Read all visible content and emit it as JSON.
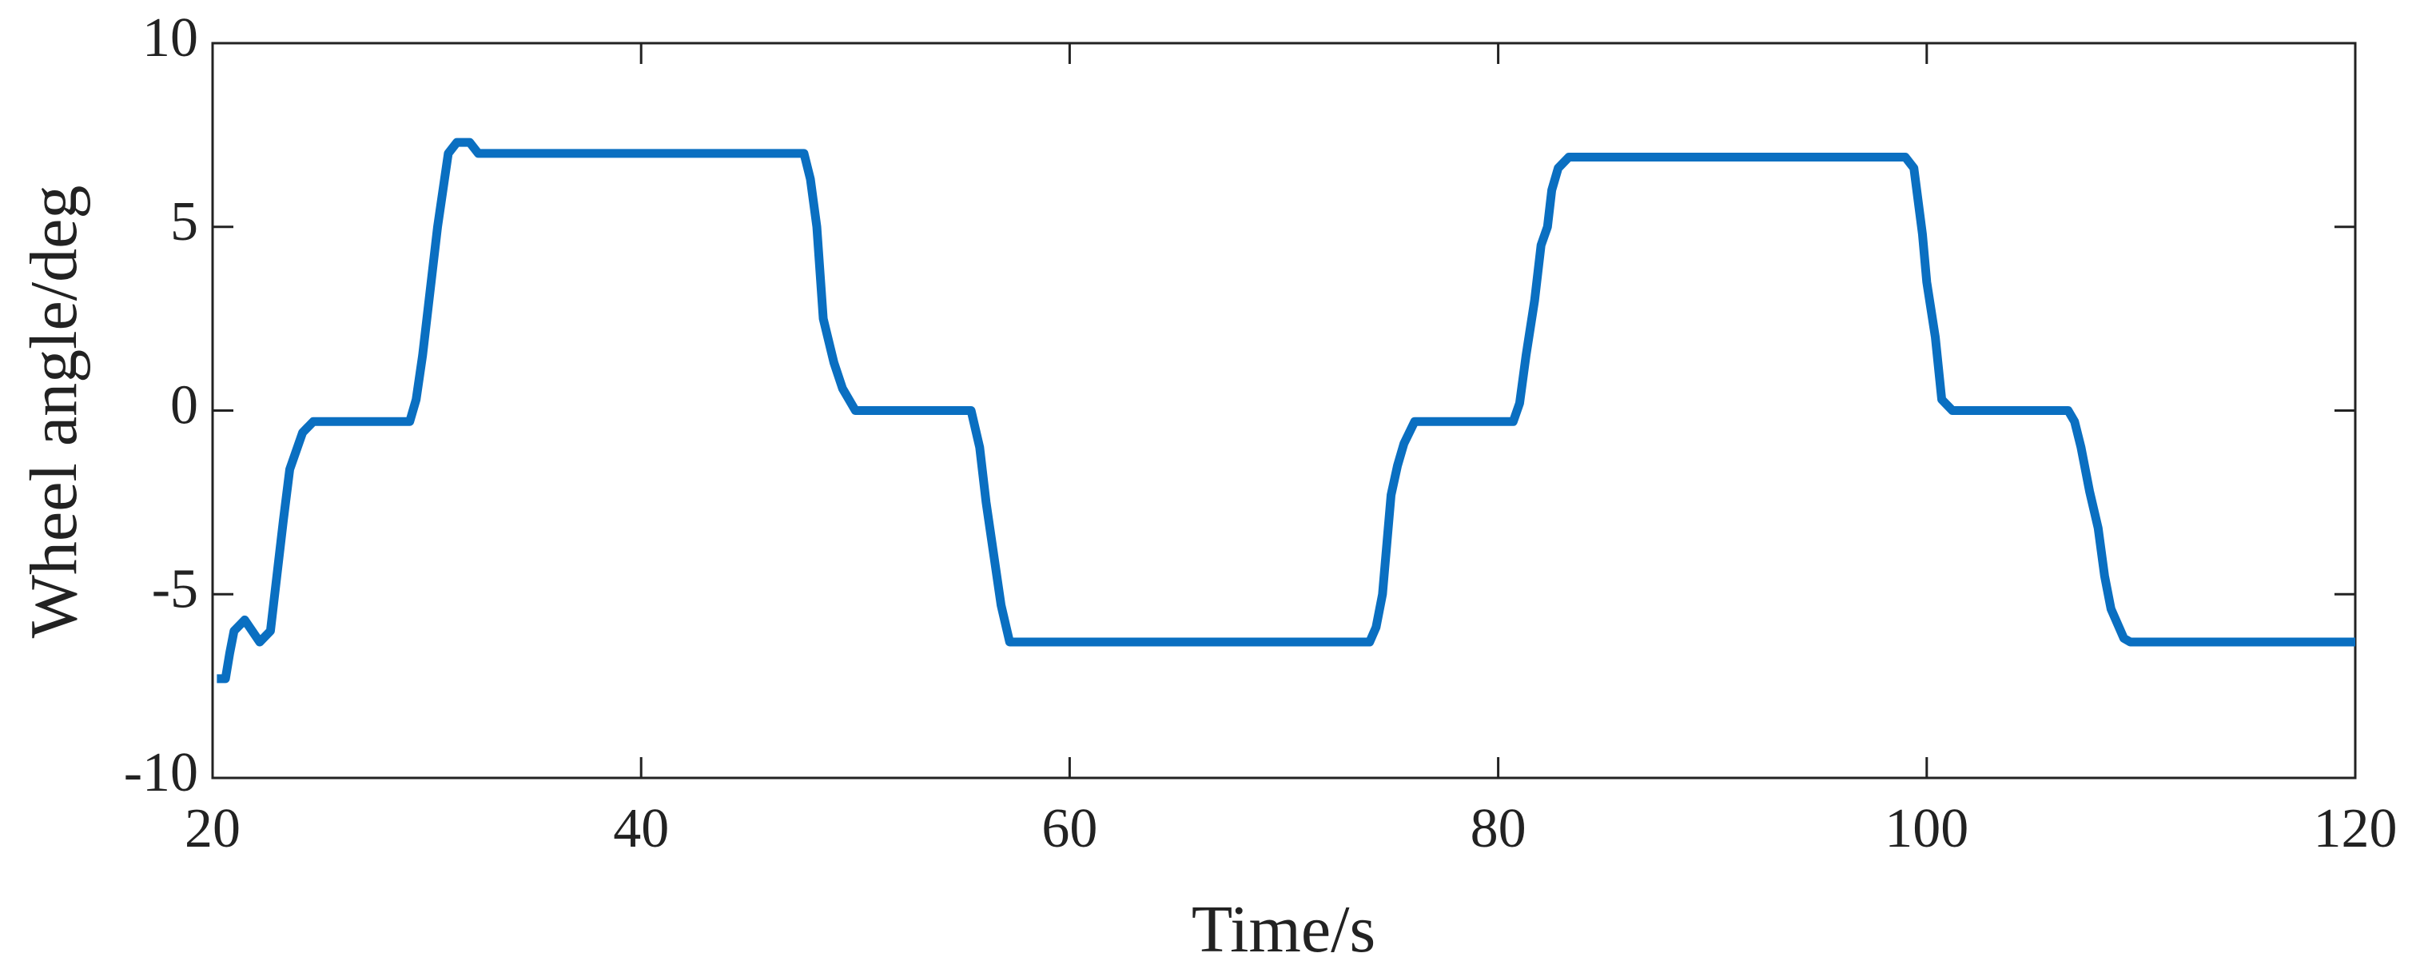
{
  "chart_data": {
    "type": "line",
    "xlabel": "Time/s",
    "ylabel": "Wheel angle/deg",
    "xlim": [
      20,
      120
    ],
    "ylim": [
      -10,
      10
    ],
    "xticks": [
      20,
      40,
      60,
      80,
      100,
      120
    ],
    "yticks": [
      -10,
      -5,
      0,
      5,
      10
    ],
    "series": [
      {
        "name": "Wheel angle",
        "color": "#0a6fc1",
        "x": [
          20.2,
          20.6,
          20.8,
          21.0,
          21.5,
          22.2,
          22.7,
          23.0,
          23.3,
          23.6,
          24.2,
          24.7,
          29.2,
          29.5,
          29.8,
          30.1,
          30.5,
          31.0,
          31.4,
          32.0,
          32.4,
          47.6,
          47.9,
          48.2,
          48.5,
          49.0,
          49.4,
          50.0,
          55.4,
          55.8,
          56.1,
          56.8,
          57.2,
          74.0,
          74.3,
          74.6,
          75.0,
          75.3,
          75.6,
          76.1,
          80.7,
          81.0,
          81.3,
          81.7,
          82.0,
          82.3,
          82.5,
          82.8,
          83.3,
          99.0,
          99.4,
          99.8,
          100.0,
          100.4,
          100.7,
          101.2,
          106.6,
          106.9,
          107.2,
          107.6,
          108.0,
          108.3,
          108.6,
          109.2,
          109.5,
          120.0
        ],
        "values": [
          -7.3,
          -7.3,
          -6.6,
          -6.0,
          -5.7,
          -6.3,
          -6.0,
          -4.5,
          -3.0,
          -1.6,
          -0.6,
          -0.3,
          -0.3,
          0.3,
          1.5,
          3.0,
          5.0,
          7.0,
          7.3,
          7.3,
          7.0,
          7.0,
          6.3,
          5.0,
          2.5,
          1.3,
          0.6,
          0,
          0,
          -1.0,
          -2.5,
          -5.3,
          -6.3,
          -6.3,
          -5.9,
          -5.0,
          -2.3,
          -1.5,
          -0.9,
          -0.3,
          -0.3,
          0.2,
          1.5,
          3.0,
          4.5,
          5.0,
          6.0,
          6.6,
          6.9,
          6.9,
          6.6,
          4.8,
          3.5,
          2.0,
          0.3,
          0,
          0,
          -0.3,
          -1.0,
          -2.2,
          -3.2,
          -4.5,
          -5.4,
          -6.2,
          -6.3,
          -6.3
        ]
      }
    ]
  }
}
